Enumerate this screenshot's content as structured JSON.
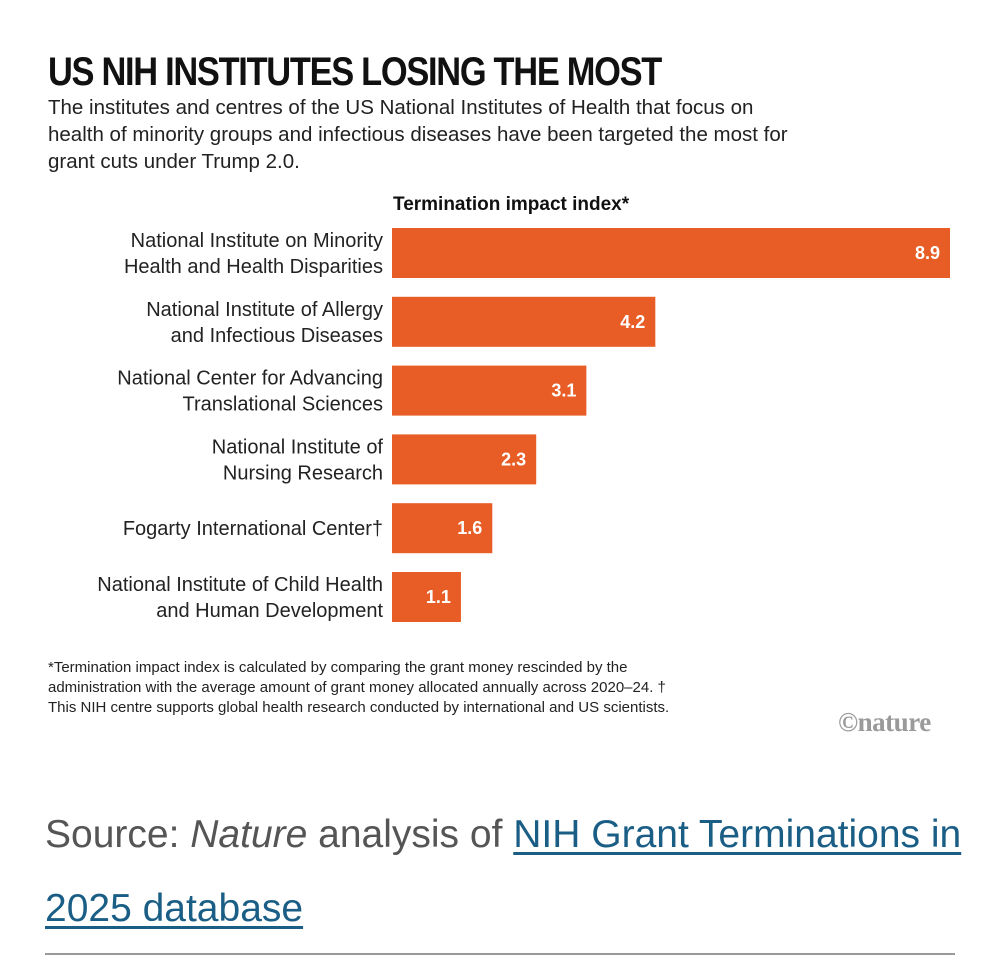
{
  "title": "US NIH INSTITUTES LOSING THE MOST",
  "subtitle": "The institutes and centres of the US National Institutes of Health that focus on health of minority groups and infectious diseases have been targeted the most for grant cuts under Trump 2.0.",
  "chart_data": {
    "type": "bar",
    "orientation": "horizontal",
    "xlabel": "Termination impact index*",
    "bar_color": "#e85d25",
    "xlim": [
      0,
      8.9
    ],
    "categories": [
      [
        "National Institute on Minority",
        "Health and Health Disparities"
      ],
      [
        "National Institute of Allergy",
        "and Infectious Diseases"
      ],
      [
        "National Center for Advancing",
        "Translational Sciences"
      ],
      [
        "National Institute of",
        "Nursing Research"
      ],
      [
        "Fogarty International Center†"
      ],
      [
        "National Institute of Child Health",
        "and Human Development"
      ]
    ],
    "values": [
      8.9,
      4.2,
      3.1,
      2.3,
      1.6,
      1.1
    ],
    "value_labels": [
      "8.9",
      "4.2",
      "3.1",
      "2.3",
      "1.6",
      "1.1"
    ]
  },
  "footnote": "*Termination impact index is calculated by comparing the grant money rescinded by the administration with the average amount of grant money allocated annually across 2020–24. † This NIH centre supports global health research conducted by international and US scientists.",
  "logo": "©nature",
  "source": {
    "prefix": "Source: ",
    "italic": "Nature",
    "middle": " analysis of ",
    "link_text": "NIH Grant Terminations in 2025 database"
  },
  "colors": {
    "bar": "#e85d25",
    "link": "#1a5e86",
    "source_text": "#555555"
  }
}
